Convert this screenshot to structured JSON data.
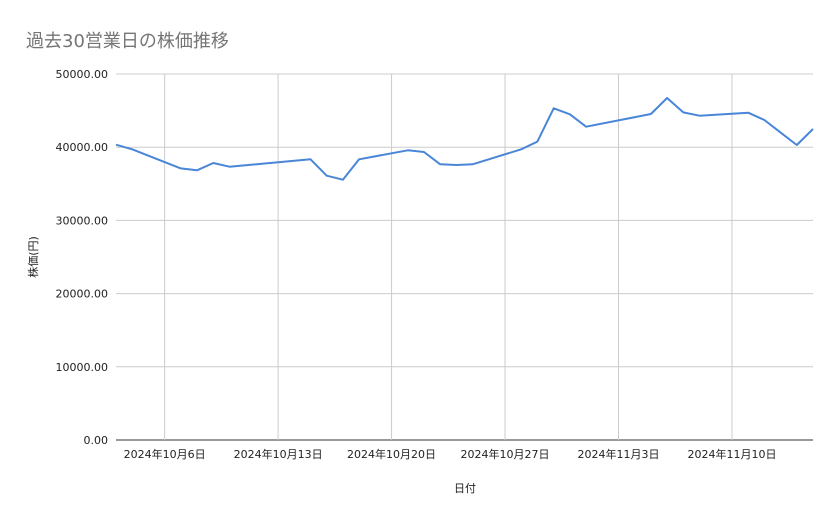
{
  "chart_data": {
    "type": "line",
    "title": "過去30営業日の株価推移",
    "xlabel": "日付",
    "ylabel": "株価(円)",
    "ylim": [
      0,
      50000
    ],
    "yticks": [
      "0.00",
      "10000.00",
      "20000.00",
      "30000.00",
      "40000.00",
      "50000.00"
    ],
    "yticks_values": [
      0,
      10000,
      20000,
      30000,
      40000,
      50000
    ],
    "xticks": [
      {
        "date": "2024-10-06",
        "label": "2024年10月6日"
      },
      {
        "date": "2024-10-13",
        "label": "2024年10月13日"
      },
      {
        "date": "2024-10-20",
        "label": "2024年10月20日"
      },
      {
        "date": "2024-10-27",
        "label": "2024年10月27日"
      },
      {
        "date": "2024-11-03",
        "label": "2024年11月3日"
      },
      {
        "date": "2024-11-10",
        "label": "2024年11月10日"
      }
    ],
    "xlim": [
      "2024-10-03",
      "2024-11-15"
    ],
    "grid": true,
    "line_color": "#4a86d8",
    "series": [
      {
        "x": [
          "2024-10-03",
          "2024-10-04",
          "2024-10-07",
          "2024-10-08",
          "2024-10-09",
          "2024-10-10",
          "2024-10-11",
          "2024-10-15",
          "2024-10-16",
          "2024-10-17",
          "2024-10-18",
          "2024-10-21",
          "2024-10-22",
          "2024-10-23",
          "2024-10-24",
          "2024-10-25",
          "2024-10-28",
          "2024-10-29",
          "2024-10-30",
          "2024-10-31",
          "2024-11-01",
          "2024-11-05",
          "2024-11-06",
          "2024-11-07",
          "2024-11-08",
          "2024-11-11",
          "2024-11-12",
          "2024-11-13",
          "2024-11-14",
          "2024-11-15"
        ],
        "values": [
          40340,
          39710,
          37110,
          36840,
          37840,
          37340,
          37540,
          38350,
          36110,
          35560,
          38350,
          39570,
          39340,
          37660,
          37570,
          37660,
          39710,
          40760,
          45310,
          44490,
          42800,
          44540,
          46720,
          44760,
          44300,
          44710,
          43720,
          42000,
          40300,
          42490
        ]
      }
    ]
  }
}
